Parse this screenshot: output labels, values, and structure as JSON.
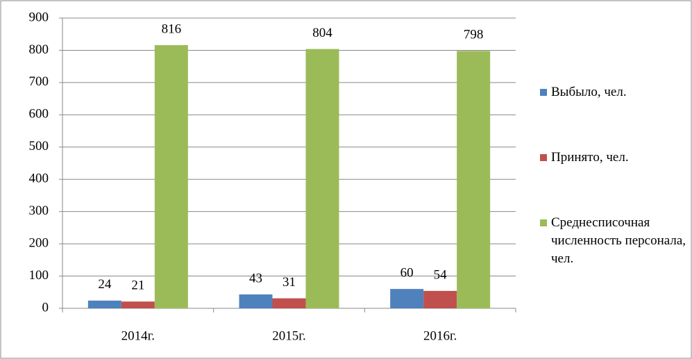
{
  "chart_data": {
    "type": "bar",
    "categories": [
      "2014г.",
      "2015г.",
      "2016г."
    ],
    "series": [
      {
        "name": "Выбыло, чел.",
        "color": "#4f81bd",
        "values": [
          24,
          43,
          60
        ]
      },
      {
        "name": "Принято, чел.",
        "color": "#c0504d",
        "values": [
          21,
          31,
          54
        ]
      },
      {
        "name": "Среднесписочная численность персонала, чел.",
        "color": "#9bbb59",
        "values": [
          816,
          804,
          798
        ]
      }
    ],
    "ylim": [
      0,
      900
    ],
    "yticks": [
      0,
      100,
      200,
      300,
      400,
      500,
      600,
      700,
      800,
      900
    ],
    "grid": true,
    "legend": "right"
  }
}
